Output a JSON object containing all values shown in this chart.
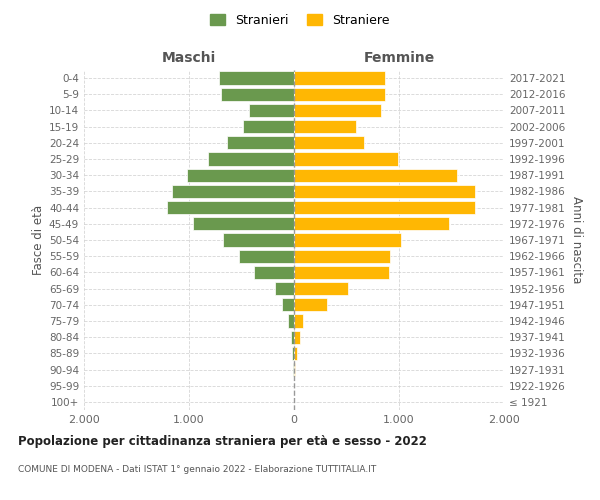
{
  "age_groups": [
    "100+",
    "95-99",
    "90-94",
    "85-89",
    "80-84",
    "75-79",
    "70-74",
    "65-69",
    "60-64",
    "55-59",
    "50-54",
    "45-49",
    "40-44",
    "35-39",
    "30-34",
    "25-29",
    "20-24",
    "15-19",
    "10-14",
    "5-9",
    "0-4"
  ],
  "birth_years": [
    "≤ 1921",
    "1922-1926",
    "1927-1931",
    "1932-1936",
    "1937-1941",
    "1942-1946",
    "1947-1951",
    "1952-1956",
    "1957-1961",
    "1962-1966",
    "1967-1971",
    "1972-1976",
    "1977-1981",
    "1982-1986",
    "1987-1991",
    "1992-1996",
    "1997-2001",
    "2002-2006",
    "2007-2011",
    "2012-2016",
    "2017-2021"
  ],
  "maschi": [
    2,
    3,
    5,
    15,
    30,
    55,
    110,
    180,
    380,
    520,
    680,
    960,
    1210,
    1160,
    1020,
    820,
    640,
    490,
    430,
    700,
    710
  ],
  "femmine": [
    3,
    4,
    8,
    25,
    55,
    90,
    310,
    510,
    900,
    910,
    1020,
    1480,
    1720,
    1720,
    1550,
    990,
    670,
    590,
    830,
    870,
    870
  ],
  "maschi_color": "#6a994e",
  "femmine_color": "#ffb703",
  "bar_edge_color": "#ffffff",
  "background_color": "#ffffff",
  "grid_color": "#cccccc",
  "title": "Popolazione per cittadinanza straniera per età e sesso - 2022",
  "subtitle": "COMUNE DI MODENA - Dati ISTAT 1° gennaio 2022 - Elaborazione TUTTITALIA.IT",
  "xlabel_left": "Maschi",
  "xlabel_right": "Femmine",
  "ylabel_left": "Fasce di età",
  "ylabel_right": "Anni di nascita",
  "legend_stranieri": "Stranieri",
  "legend_straniere": "Straniere",
  "xlim": 2000,
  "xtick_labels": [
    "2.000",
    "1.000",
    "0",
    "1.000",
    "2.000"
  ]
}
